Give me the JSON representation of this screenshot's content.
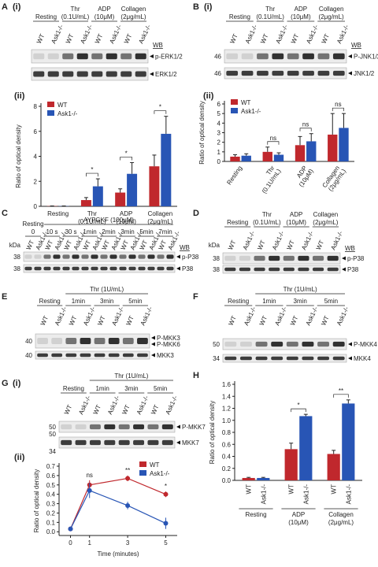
{
  "blots": [
    {
      "letter": "A",
      "label": "(i)",
      "groups": [
        [
          "Resting"
        ],
        [
          "Thr",
          "(0.1U/mL)"
        ],
        [
          "ADP",
          "(10μM)"
        ],
        [
          "Collagen",
          "(2μg/mL)"
        ]
      ],
      "lanes": [
        "WT",
        "Ask1-/-"
      ],
      "wb": "WB",
      "rows": [
        {
          "labels": [
            "p-ERK1/2"
          ]
        },
        {
          "labels": [
            "ERK1/2"
          ]
        }
      ]
    },
    {
      "letter": "B",
      "label": "(i)",
      "groups": [
        [
          "Resting"
        ],
        [
          "Thr",
          "(0.1U/mL)"
        ],
        [
          "ADP",
          "(10μM)"
        ],
        [
          "Collagen",
          "(2μg/mL)"
        ]
      ],
      "lanes": [
        "WT",
        "Ask1-/-"
      ],
      "wb": "WB",
      "rows": [
        {
          "labels": [
            "P-JNK1/2"
          ],
          "kda": [
            46
          ]
        },
        {
          "labels": [
            "JNK1/2"
          ],
          "kda": [
            46
          ]
        }
      ]
    },
    {
      "letter": "C",
      "header": "AYPGKF (100μM)",
      "groups": [
        [
          "Resting",
          "0"
        ],
        [
          "10 s"
        ],
        [
          "30 s"
        ],
        [
          "1min"
        ],
        [
          "2min"
        ],
        [
          "3min"
        ],
        [
          "5min"
        ],
        [
          "7min"
        ]
      ],
      "lanes": [
        "WT",
        "Ask1-/-"
      ],
      "wb": "WB",
      "kda_title": "kDa",
      "rows": [
        {
          "labels": [
            "p-P38"
          ],
          "kda": [
            38
          ]
        },
        {
          "labels": [
            "P38"
          ],
          "kda": [
            38
          ]
        }
      ]
    },
    {
      "letter": "D",
      "groups": [
        [
          "Resting"
        ],
        [
          "Thr",
          "(0.1U/mL)"
        ],
        [
          "ADP",
          "(10μM)"
        ],
        [
          "Collagen",
          "(2μg/mL)"
        ]
      ],
      "lanes": [
        "WT",
        "Ask1-/-"
      ],
      "wb": "WB",
      "kda_title": "kDa",
      "rows": [
        {
          "labels": [
            "p-P38"
          ],
          "kda": [
            38
          ]
        },
        {
          "labels": [
            "P38"
          ],
          "kda": [
            38
          ]
        }
      ]
    },
    {
      "letter": "E",
      "header": "Thr (1U/mL)",
      "groups": [
        [
          "Resting"
        ],
        [
          "1min"
        ],
        [
          "3min"
        ],
        [
          "5min"
        ]
      ],
      "lanes": [
        "WT",
        "Ask1-/-"
      ],
      "rows": [
        {
          "labels": [
            "P-MKK3",
            "P-MKK6"
          ],
          "kda": [
            40
          ]
        },
        {
          "labels": [
            "MKK3"
          ],
          "kda": [
            40
          ]
        }
      ]
    },
    {
      "letter": "F",
      "header": "Thr (1U/mL)",
      "groups": [
        [
          "Resting"
        ],
        [
          "1min"
        ],
        [
          "3min"
        ],
        [
          "5min"
        ]
      ],
      "lanes": [
        "WT",
        "Ask1-/-"
      ],
      "rows": [
        {
          "labels": [
            "P-MKK4"
          ],
          "kda": [
            50
          ]
        },
        {
          "labels": [
            "MKK4"
          ],
          "kda": [
            34
          ]
        }
      ]
    },
    {
      "letter": "G",
      "label": "(i)",
      "header": "Thr (1U/mL)",
      "groups": [
        [
          "Resting"
        ],
        [
          "1min"
        ],
        [
          "3min"
        ],
        [
          "5min"
        ]
      ],
      "lanes": [
        "WT",
        "Ask1-/-"
      ],
      "rows": [
        {
          "labels": [
            "P-MKK7"
          ],
          "kda": [
            50
          ]
        },
        {
          "labels": [
            "MKK7"
          ],
          "kda": [
            50,
            34
          ]
        }
      ]
    }
  ],
  "chart_data": [
    {
      "type": "bar",
      "label": "(ii)",
      "ylabel": "Ratio of optical density",
      "legend": "upper left",
      "categories": [
        [
          "Resting"
        ],
        [
          "Thr",
          "(0.1U/mL)"
        ],
        [
          "ADP",
          "(10μM)"
        ],
        [
          "Collagen",
          "(2μg/mL)"
        ]
      ],
      "series": [
        {
          "name": "WT",
          "color": "#c0282d",
          "values": [
            0.02,
            0.5,
            1.1,
            3.2
          ],
          "errors": [
            0.01,
            0.2,
            0.3,
            0.9
          ]
        },
        {
          "name": "Ask1-/-",
          "color": "#2855b5",
          "values": [
            0.02,
            1.6,
            2.6,
            5.8
          ],
          "errors": [
            0.01,
            0.6,
            0.9,
            1.4
          ]
        }
      ],
      "significance": [
        null,
        "*",
        "*",
        "*"
      ],
      "ylim": [
        0,
        8
      ],
      "yticks": [
        0,
        2,
        4,
        6,
        8
      ]
    },
    {
      "type": "bar",
      "label": "(ii)",
      "ylabel": "Ratio of optical density",
      "legend": "upper left",
      "rotate_labels": true,
      "categories": [
        [
          "Resting"
        ],
        [
          "Thr",
          "(0.1U/mL)"
        ],
        [
          "ADP",
          "(10μM)"
        ],
        [
          "Collagen",
          "(2μg/mL)"
        ]
      ],
      "series": [
        {
          "name": "WT",
          "color": "#c0282d",
          "values": [
            0.5,
            1.0,
            1.7,
            2.8
          ],
          "errors": [
            0.2,
            0.5,
            0.9,
            2.2
          ]
        },
        {
          "name": "Ask1-/-",
          "color": "#2855b5",
          "values": [
            0.6,
            0.7,
            2.1,
            3.5
          ],
          "errors": [
            0.2,
            0.2,
            0.8,
            1.5
          ]
        }
      ],
      "significance": [
        null,
        "ns",
        "ns",
        "ns"
      ],
      "ylim": [
        0,
        6
      ],
      "yticks": [
        0,
        1,
        2,
        3,
        4,
        5,
        6
      ]
    },
    {
      "type": "line",
      "label": "(ii)",
      "ylabel": "Ratio of optical density",
      "xlabel": "Time (minutes)",
      "legend": "upper right",
      "x": [
        0,
        1,
        3,
        5
      ],
      "xlim": [
        -0.6,
        5.6
      ],
      "xticks": [
        0,
        1,
        3,
        5
      ],
      "series": [
        {
          "name": "WT",
          "color": "#c0282d",
          "values": [
            0.03,
            0.5,
            0.57,
            0.4
          ],
          "errors": [
            0,
            0.05,
            0.03,
            0.03
          ]
        },
        {
          "name": "Ask1-/-",
          "color": "#2855b5",
          "values": [
            0.03,
            0.44,
            0.28,
            0.09
          ],
          "errors": [
            0,
            0.08,
            0.04,
            0.06
          ]
        }
      ],
      "significance": [
        null,
        "ns",
        "**",
        "*"
      ],
      "ylim": [
        -0.04,
        0.7
      ],
      "yticks": [
        {
          "value": 0,
          "label": "0.0"
        },
        0.1,
        0.2,
        0.3,
        0.4,
        0.5,
        0.6,
        0.7
      ]
    },
    {
      "type": "bar",
      "letter": "H",
      "ylabel": "Ratio of optical density",
      "bar_names": true,
      "categories": [
        [
          "Resting"
        ],
        [
          "ADP",
          "(10μM)"
        ],
        [
          "Collagen",
          "(2μg/mL)"
        ]
      ],
      "series": [
        {
          "name": "WT",
          "color": "#c0282d",
          "values": [
            0.04,
            0.52,
            0.44
          ],
          "errors": [
            0.01,
            0.1,
            0.06
          ]
        },
        {
          "name": "Ask1-/-",
          "color": "#2855b5",
          "values": [
            0.04,
            1.07,
            1.28
          ],
          "errors": [
            0.01,
            0.03,
            0.06
          ]
        }
      ],
      "significance": [
        null,
        "*",
        "**"
      ],
      "ylim": [
        0,
        1.6
      ],
      "yticks": [
        {
          "value": 0,
          "label": "0.0"
        },
        0.2,
        0.4,
        0.6,
        0.8,
        {
          "value": 1,
          "label": "1.0"
        },
        1.2,
        1.4,
        1.6
      ]
    }
  ]
}
